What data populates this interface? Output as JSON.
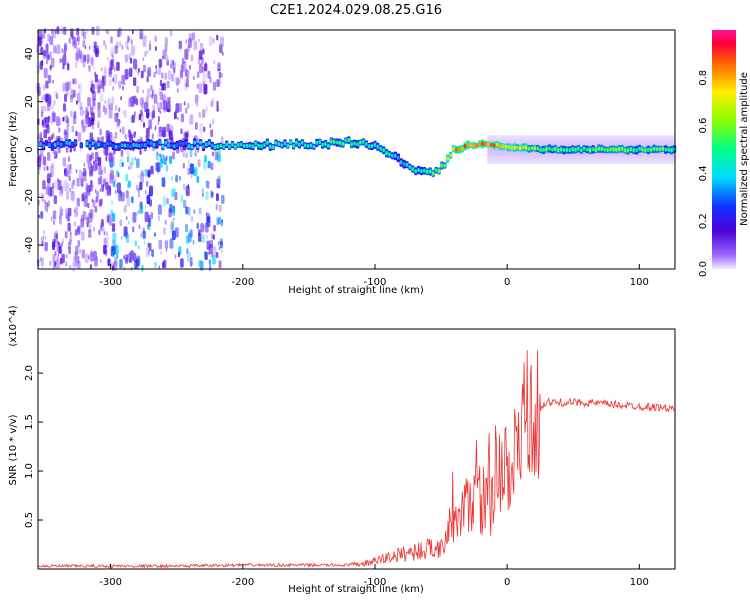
{
  "title": "C2E1.2024.029.08.25.G16",
  "chart_data": [
    {
      "type": "heatmap",
      "xlabel": "Height of straight line (km)",
      "ylabel": "Frequency (Hz)",
      "xlim": [
        -355,
        127
      ],
      "ylim": [
        -50,
        50
      ],
      "x_ticks": [
        -300,
        -200,
        -100,
        0,
        100
      ],
      "y_ticks": [
        -40,
        -20,
        0,
        20,
        40
      ],
      "colorbar": {
        "label": "Normalized spectral amplitude",
        "range": [
          0.0,
          1.0
        ],
        "ticks": [
          0.0,
          0.2,
          0.4,
          0.6,
          0.8
        ]
      },
      "signal_track": {
        "x": [
          -355,
          -300,
          -250,
          -200,
          -150,
          -120,
          -100,
          -90,
          -80,
          -70,
          -60,
          -50,
          -40,
          -30,
          -20,
          -10,
          0,
          30,
          60,
          127
        ],
        "freq": [
          2,
          2,
          2,
          2,
          2,
          3,
          2,
          -1,
          -5,
          -8,
          -10,
          -8,
          0,
          2,
          2,
          2,
          1,
          0,
          0,
          0
        ],
        "amplitude": [
          0.3,
          0.35,
          0.35,
          0.45,
          0.45,
          0.5,
          0.5,
          0.45,
          0.4,
          0.45,
          0.5,
          0.55,
          0.8,
          0.85,
          0.85,
          0.85,
          0.75,
          0.55,
          0.55,
          0.55
        ]
      },
      "grid": false
    },
    {
      "type": "line",
      "xlabel": "Height of straight line (km)",
      "ylabel": "SNR (10 * v/v)",
      "y_scale_label": "(x10^4)",
      "xlim": [
        -355,
        127
      ],
      "ylim": [
        0,
        2.45
      ],
      "x_ticks": [
        -300,
        -200,
        -100,
        0,
        100
      ],
      "y_ticks": [
        0.5,
        1.0,
        1.5,
        2.0
      ],
      "series": [
        {
          "color": "#ee3333",
          "x": [
            -355,
            -300,
            -250,
            -200,
            -150,
            -120,
            -110,
            -100,
            -90,
            -80,
            -70,
            -60,
            -50,
            -40,
            -35,
            -30,
            -25,
            -20,
            -15,
            -10,
            -5,
            0,
            5,
            10,
            15,
            20,
            25,
            30,
            40,
            60,
            80,
            100,
            115,
            127
          ],
          "values": [
            0.03,
            0.03,
            0.03,
            0.04,
            0.04,
            0.04,
            0.05,
            0.08,
            0.12,
            0.15,
            0.18,
            0.2,
            0.25,
            0.4,
            0.5,
            0.65,
            0.8,
            0.7,
            0.7,
            0.8,
            0.95,
            1.0,
            1.1,
            1.3,
            1.45,
            1.55,
            1.65,
            1.7,
            1.7,
            1.7,
            1.68,
            1.66,
            1.65,
            1.63
          ]
        }
      ],
      "grid": false
    }
  ]
}
